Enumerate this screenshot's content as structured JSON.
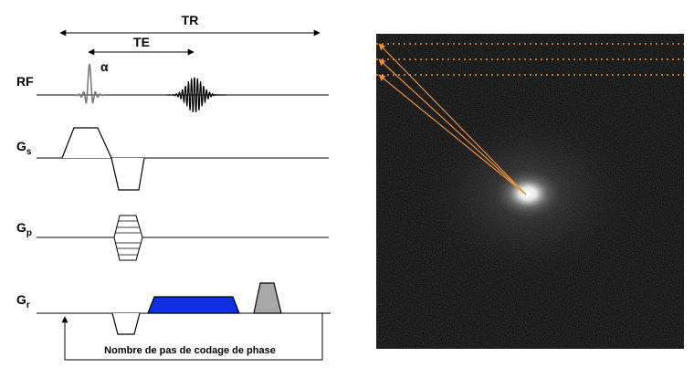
{
  "timing": {
    "tr_label": "TR",
    "te_label": "TE"
  },
  "rows": {
    "rf": {
      "label": "RF",
      "flip_label": "α"
    },
    "gs": {
      "label": "G",
      "sub": "s"
    },
    "gp": {
      "label": "G",
      "sub": "p"
    },
    "gr": {
      "label": "G",
      "sub": "r"
    }
  },
  "loop_caption": "Nombre de pas de codage de phase",
  "colors": {
    "readout_gradient": "#1030e0",
    "spoiler_gradient": "#a8a8a8",
    "kspace_arrows": "#e89040",
    "kspace_background": "#0c0c0c",
    "waveform": "#000000"
  },
  "icons": {
    "kspace_image": "kspace-image",
    "loop_arrow": "loop-arrow-icon"
  }
}
